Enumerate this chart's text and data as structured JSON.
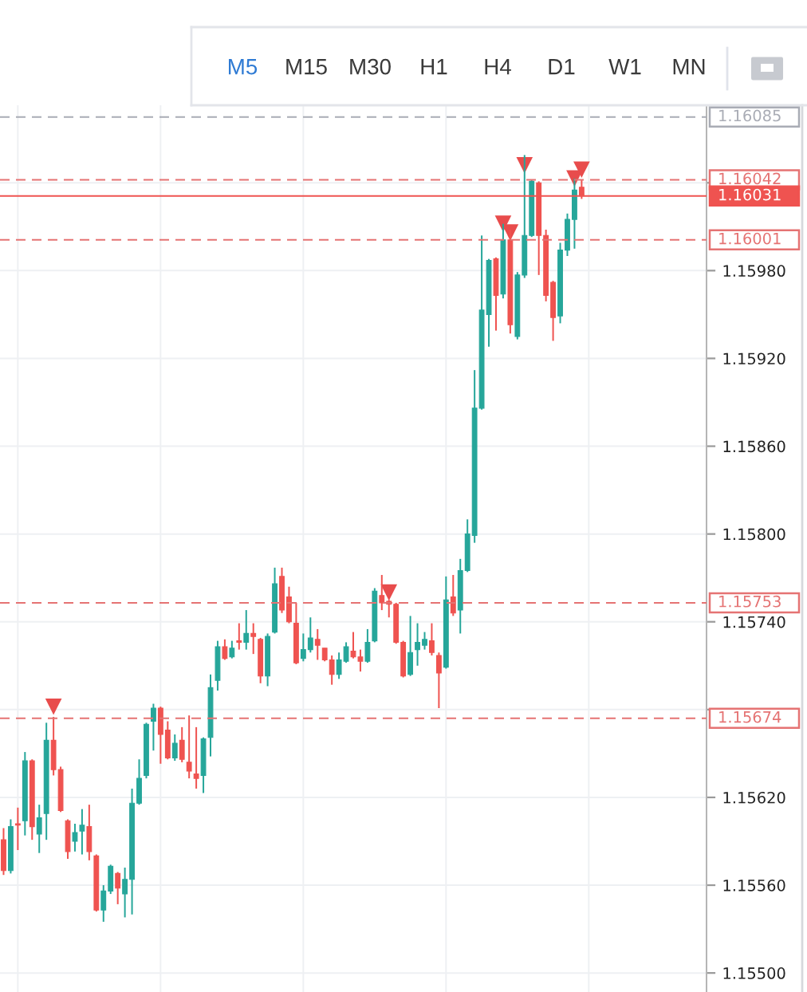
{
  "chart_data": {
    "type": "candlestick",
    "categories": [
      null,
      null,
      null,
      null,
      null,
      null,
      null,
      null,
      null,
      null,
      null,
      null,
      null,
      null,
      null,
      null,
      null,
      null,
      null,
      null,
      null,
      null,
      null,
      null,
      null,
      null,
      null,
      null,
      null,
      null,
      null,
      null,
      null,
      null,
      null,
      null,
      null,
      null,
      null,
      null,
      null,
      null,
      null,
      null,
      null,
      null,
      null,
      null,
      null,
      null,
      null,
      null,
      null,
      null,
      null,
      null,
      null,
      null,
      null,
      null,
      null,
      null,
      null,
      null,
      null,
      null,
      null,
      null,
      null,
      null,
      null,
      null,
      null,
      null,
      null,
      null,
      null,
      null,
      null,
      null,
      null,
      null,
      null,
      null,
      null,
      null,
      null,
      null,
      null,
      null,
      null,
      null,
      null,
      null,
      null,
      null,
      null,
      null,
      null
    ],
    "ohlc": [
      [
        1.15591,
        1.15599,
        1.15567,
        1.1557
      ],
      [
        1.1557,
        1.15605,
        1.15568,
        1.156
      ],
      [
        1.15602,
        1.15613,
        1.15584,
        1.15601
      ],
      [
        1.15604,
        1.15651,
        1.15594,
        1.15645
      ],
      [
        1.15645,
        1.15646,
        1.15591,
        1.156
      ],
      [
        1.15595,
        1.15615,
        1.15582,
        1.15606
      ],
      [
        1.15609,
        1.15671,
        1.15591,
        1.15659
      ],
      [
        1.15659,
        1.15675,
        1.15635,
        1.15639
      ],
      [
        1.15639,
        1.15641,
        1.1561,
        1.15611
      ],
      [
        1.15604,
        1.15605,
        1.15578,
        1.15583
      ],
      [
        1.1559,
        1.15602,
        1.15583,
        1.15596
      ],
      [
        1.15597,
        1.15612,
        1.15581,
        1.15601
      ],
      [
        1.156,
        1.15615,
        1.15577,
        1.15583
      ],
      [
        1.1558,
        1.15581,
        1.15542,
        1.15543
      ],
      [
        1.15543,
        1.1556,
        1.15535,
        1.15556
      ],
      [
        1.15556,
        1.15574,
        1.15554,
        1.15573
      ],
      [
        1.15568,
        1.15569,
        1.15547,
        1.15558
      ],
      [
        1.15554,
        1.15572,
        1.15538,
        1.15564
      ],
      [
        1.15564,
        1.15626,
        1.1554,
        1.15616
      ],
      [
        1.15616,
        1.15646,
        1.15615,
        1.15633
      ],
      [
        1.15635,
        1.15671,
        1.15633,
        1.1567
      ],
      [
        1.15672,
        1.15684,
        1.15652,
        1.15681
      ],
      [
        1.15681,
        1.15682,
        1.15643,
        1.15663
      ],
      [
        1.15666,
        1.15672,
        1.15646,
        1.15647
      ],
      [
        1.15647,
        1.15663,
        1.15645,
        1.15657
      ],
      [
        1.15659,
        1.15668,
        1.15644,
        1.15646
      ],
      [
        1.15644,
        1.15676,
        1.15633,
        1.15638
      ],
      [
        1.15636,
        1.15668,
        1.15626,
        1.15633
      ],
      [
        1.15635,
        1.15661,
        1.15623,
        1.1566
      ],
      [
        1.15661,
        1.15704,
        1.15648,
        1.15695
      ],
      [
        1.157,
        1.15727,
        1.15693,
        1.15723
      ],
      [
        1.15723,
        1.15728,
        1.15714,
        1.15715
      ],
      [
        1.15716,
        1.15727,
        1.15715,
        1.15722
      ],
      [
        1.15727,
        1.15739,
        1.15721,
        1.15726
      ],
      [
        1.15726,
        1.15748,
        1.15721,
        1.15732
      ],
      [
        1.15732,
        1.15739,
        1.15718,
        1.1573
      ],
      [
        1.15728,
        1.15729,
        1.15698,
        1.15703
      ],
      [
        1.15703,
        1.15732,
        1.15696,
        1.1573
      ],
      [
        1.15733,
        1.15777,
        1.15732,
        1.15766
      ],
      [
        1.15771,
        1.15777,
        1.15746,
        1.15748
      ],
      [
        1.15757,
        1.15764,
        1.15739,
        1.1574
      ],
      [
        1.15739,
        1.15753,
        1.15711,
        1.15712
      ],
      [
        1.15715,
        1.15732,
        1.15713,
        1.15721
      ],
      [
        1.15721,
        1.15743,
        1.15719,
        1.15729
      ],
      [
        1.15728,
        1.15735,
        1.15714,
        1.15724
      ],
      [
        1.15722,
        1.15722,
        1.15713,
        1.15714
      ],
      [
        1.15714,
        1.15717,
        1.15697,
        1.15704
      ],
      [
        1.15704,
        1.15719,
        1.15701,
        1.15714
      ],
      [
        1.15713,
        1.15726,
        1.15712,
        1.15723
      ],
      [
        1.1572,
        1.15733,
        1.15715,
        1.15716
      ],
      [
        1.15716,
        1.15721,
        1.15706,
        1.15713
      ],
      [
        1.15713,
        1.15735,
        1.15712,
        1.15726
      ],
      [
        1.15727,
        1.15763,
        1.15726,
        1.15761
      ],
      [
        1.15758,
        1.15772,
        1.15748,
        1.15753
      ],
      [
        1.15754,
        1.15755,
        1.15743,
        1.15752
      ],
      [
        1.15752,
        1.15753,
        1.15725,
        1.15726
      ],
      [
        1.15726,
        1.15727,
        1.15702,
        1.15703
      ],
      [
        1.15704,
        1.15744,
        1.15703,
        1.15719
      ],
      [
        1.15721,
        1.15739,
        1.1571,
        1.15726
      ],
      [
        1.15724,
        1.15733,
        1.15721,
        1.15728
      ],
      [
        1.15727,
        1.15739,
        1.15717,
        1.15719
      ],
      [
        1.15717,
        1.15719,
        1.15681,
        1.15705
      ],
      [
        1.15709,
        1.15771,
        1.15708,
        1.15755
      ],
      [
        1.15757,
        1.15772,
        1.15744,
        1.15746
      ],
      [
        1.15748,
        1.15783,
        1.15732,
        1.15775
      ],
      [
        1.15775,
        1.1581,
        1.15774,
        1.158
      ],
      [
        1.15799,
        1.15912,
        1.15794,
        1.15886
      ],
      [
        1.15886,
        1.16004,
        1.15885,
        1.15953
      ],
      [
        1.1595,
        1.15988,
        1.15928,
        1.15987
      ],
      [
        1.15988,
        1.15989,
        1.15939,
        1.15963
      ],
      [
        1.15964,
        1.16012,
        1.15961,
        1.16001
      ],
      [
        1.16001,
        1.16008,
        1.15937,
        1.15943
      ],
      [
        1.15935,
        1.15979,
        1.15933,
        1.15977
      ],
      [
        1.15977,
        1.16059,
        1.15975,
        1.16004
      ],
      [
        1.16004,
        1.16042,
        1.16003,
        1.16041
      ],
      [
        1.1604,
        1.16041,
        1.15977,
        1.16004
      ],
      [
        1.16004,
        1.16008,
        1.15959,
        1.15963
      ],
      [
        1.15972,
        1.15973,
        1.15932,
        1.15948
      ],
      [
        1.15949,
        1.15999,
        1.15944,
        1.15994
      ],
      [
        1.15994,
        1.16019,
        1.1599,
        1.16015
      ],
      [
        1.16015,
        1.16043,
        1.15995,
        1.16035
      ],
      [
        1.16037,
        1.16042,
        1.16029,
        1.16031
      ],
      null,
      null,
      null,
      null,
      null,
      null,
      null,
      null,
      null,
      null,
      null,
      null,
      null,
      null,
      null,
      null,
      null
    ],
    "colors": [
      "#ef5350",
      "#26a69a",
      "#ef5350",
      "#26a69a",
      "#ef5350",
      "#26a69a",
      "#26a69a",
      "#ef5350",
      "#ef5350",
      "#ef5350",
      "#26a69a",
      "#26a69a",
      "#ef5350",
      "#ef5350",
      "#26a69a",
      "#26a69a",
      "#ef5350",
      "#26a69a",
      "#26a69a",
      "#26a69a",
      "#26a69a",
      "#26a69a",
      "#ef5350",
      "#ef5350",
      "#26a69a",
      "#ef5350",
      "#ef5350",
      "#ef5350",
      "#26a69a",
      "#26a69a",
      "#26a69a",
      "#ef5350",
      "#26a69a",
      "#ef5350",
      "#26a69a",
      "#ef5350",
      "#ef5350",
      "#26a69a",
      "#26a69a",
      "#ef5350",
      "#ef5350",
      "#ef5350",
      "#26a69a",
      "#26a69a",
      "#ef5350",
      "#ef5350",
      "#ef5350",
      "#26a69a",
      "#26a69a",
      "#ef5350",
      "#ef5350",
      "#26a69a",
      "#26a69a",
      "#ef5350",
      "#ef5350",
      "#ef5350",
      "#ef5350",
      "#26a69a",
      "#26a69a",
      "#26a69a",
      "#ef5350",
      "#ef5350",
      "#26a69a",
      "#ef5350",
      "#26a69a",
      "#26a69a",
      "#26a69a",
      "#26a69a",
      "#26a69a",
      "#ef5350",
      "#26a69a",
      "#ef5350",
      "#26a69a",
      "#26a69a",
      "#26a69a",
      "#ef5350",
      "#ef5350",
      "#ef5350",
      "#26a69a",
      "#26a69a",
      "#26a69a",
      "#ef5350",
      null,
      null,
      null,
      null,
      null,
      null,
      null,
      null,
      null,
      null,
      null,
      null,
      null,
      null,
      null,
      null,
      null
    ],
    "series": [
      {
        "type": "scatter",
        "marker": "triangle",
        "color": "#e84c4c",
        "values": [
          null,
          null,
          null,
          null,
          null,
          null,
          null,
          1.15682,
          null,
          null,
          null,
          null,
          null,
          null,
          null,
          null,
          null,
          null,
          null,
          null,
          null,
          null,
          null,
          null,
          null,
          null,
          null,
          null,
          null,
          null,
          null,
          null,
          null,
          null,
          null,
          null,
          null,
          null,
          null,
          null,
          null,
          null,
          null,
          null,
          null,
          null,
          null,
          null,
          null,
          null,
          null,
          null,
          null,
          null,
          1.1576,
          null,
          null,
          null,
          null,
          null,
          null,
          null,
          null,
          null,
          null,
          null,
          null,
          null,
          null,
          null,
          1.16012,
          1.16006,
          null,
          1.16052,
          null,
          null,
          null,
          null,
          null,
          null,
          1.16043,
          1.16049,
          null,
          null,
          null,
          null,
          null,
          null,
          null,
          null,
          null,
          null,
          null,
          null,
          null,
          null,
          null,
          null,
          null
        ]
      }
    ],
    "ylim": [
      1.15487,
      1.16093
    ],
    "yticks": [
      {
        "value": 1.155,
        "label": "1.15500"
      },
      {
        "value": 1.1556,
        "label": "1.15560"
      },
      {
        "value": 1.1562,
        "label": "1.15620"
      },
      {
        "value": 1.1568,
        "label": null
      },
      {
        "value": 1.1574,
        "label": "1.15740"
      },
      {
        "value": 1.158,
        "label": "1.15800"
      },
      {
        "value": 1.1586,
        "label": "1.15860"
      },
      {
        "value": 1.1592,
        "label": "1.15920"
      },
      {
        "value": 1.1598,
        "label": "1.15980"
      },
      {
        "value": 1.1604,
        "label": null
      }
    ],
    "ref_lines": [
      {
        "axis": "y",
        "value": 1.16085,
        "label": "1.16085",
        "color": "#a9acb5",
        "line_style": "dashed"
      },
      {
        "axis": "y",
        "value": 1.16042,
        "label": "1.16042",
        "color": "#e57373",
        "line_style": "dashed"
      },
      {
        "axis": "y",
        "value": 1.16031,
        "label": "1.16031",
        "color": "#ef5350",
        "line_style": "solid"
      },
      {
        "axis": "y",
        "value": 1.16001,
        "label": "1.16001",
        "color": "#e57373",
        "line_style": "dashed"
      },
      {
        "axis": "y",
        "value": 1.15753,
        "label": "1.15753",
        "color": "#e57373",
        "line_style": "dashed"
      },
      {
        "axis": "y",
        "value": 1.15674,
        "label": "1.15674",
        "color": "#e57373",
        "line_style": "dashed"
      }
    ],
    "grid": true,
    "tick_labels": "y",
    "annotations": [
      "M5",
      "M15",
      "M30",
      "H1",
      "H4",
      "D1",
      "W1",
      "MN"
    ]
  }
}
